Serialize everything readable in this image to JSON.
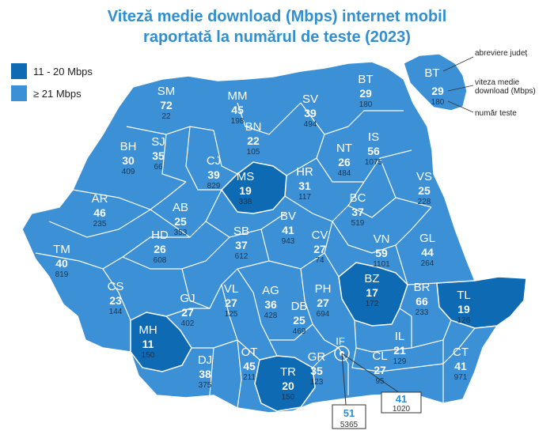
{
  "title_line1": "Viteză medie download (Mbps) internet mobil",
  "title_line2": "raportată la numărul de teste (2023)",
  "colors": {
    "low": "#0d6ab3",
    "high": "#3c91d6",
    "border": "#ffffff",
    "title": "#2f8fd0",
    "bucharest_value": "#2f8fd0"
  },
  "legend": [
    {
      "label": "11 - 20 Mbps",
      "color": "#0d6ab3"
    },
    {
      "label": "≥ 21 Mbps",
      "color": "#3c91d6"
    }
  ],
  "key": {
    "abbrev": "abreviere județ",
    "speed": "viteza medie download (Mbps)",
    "tests": "număr teste"
  },
  "counties": [
    {
      "code": "SM",
      "speed": 72,
      "tests": 22
    },
    {
      "code": "MM",
      "speed": 45,
      "tests": 198
    },
    {
      "code": "BH",
      "speed": 30,
      "tests": 409
    },
    {
      "code": "SJ",
      "speed": 35,
      "tests": 66
    },
    {
      "code": "CJ",
      "speed": 39,
      "tests": 829
    },
    {
      "code": "BN",
      "speed": 22,
      "tests": 105
    },
    {
      "code": "SV",
      "speed": 39,
      "tests": 494
    },
    {
      "code": "BT",
      "speed": 29,
      "tests": 180
    },
    {
      "code": "IS",
      "speed": 56,
      "tests": 1075
    },
    {
      "code": "NT",
      "speed": 26,
      "tests": 484
    },
    {
      "code": "MS",
      "speed": 19,
      "tests": 338
    },
    {
      "code": "HR",
      "speed": 31,
      "tests": 117
    },
    {
      "code": "BC",
      "speed": 37,
      "tests": 519
    },
    {
      "code": "VS",
      "speed": 25,
      "tests": 228
    },
    {
      "code": "AR",
      "speed": 46,
      "tests": 235
    },
    {
      "code": "AB",
      "speed": 25,
      "tests": 353
    },
    {
      "code": "SB",
      "speed": 37,
      "tests": 612
    },
    {
      "code": "BV",
      "speed": 41,
      "tests": 943
    },
    {
      "code": "CV",
      "speed": 27,
      "tests": 74
    },
    {
      "code": "VN",
      "speed": 59,
      "tests": 1101
    },
    {
      "code": "GL",
      "speed": 44,
      "tests": 264
    },
    {
      "code": "TM",
      "speed": 40,
      "tests": 819
    },
    {
      "code": "HD",
      "speed": 26,
      "tests": 608
    },
    {
      "code": "CS",
      "speed": 23,
      "tests": 144
    },
    {
      "code": "GJ",
      "speed": 27,
      "tests": 402
    },
    {
      "code": "VL",
      "speed": 27,
      "tests": 125
    },
    {
      "code": "AG",
      "speed": 36,
      "tests": 428
    },
    {
      "code": "PH",
      "speed": 27,
      "tests": 694
    },
    {
      "code": "BZ",
      "speed": 17,
      "tests": 172
    },
    {
      "code": "BR",
      "speed": 66,
      "tests": 233
    },
    {
      "code": "TL",
      "speed": 19,
      "tests": 126
    },
    {
      "code": "MH",
      "speed": 11,
      "tests": 150
    },
    {
      "code": "DB",
      "speed": 25,
      "tests": 469
    },
    {
      "code": "IL",
      "speed": 21,
      "tests": 129
    },
    {
      "code": "DJ",
      "speed": 38,
      "tests": 375
    },
    {
      "code": "OT",
      "speed": 45,
      "tests": 211
    },
    {
      "code": "TR",
      "speed": 20,
      "tests": 150
    },
    {
      "code": "GR",
      "speed": 35,
      "tests": 123
    },
    {
      "code": "CL",
      "speed": 27,
      "tests": 95
    },
    {
      "code": "CT",
      "speed": 41,
      "tests": 971
    },
    {
      "code": "IF",
      "speed": 41,
      "tests": 1020
    },
    {
      "code": "B",
      "speed": 51,
      "tests": 5365
    }
  ]
}
